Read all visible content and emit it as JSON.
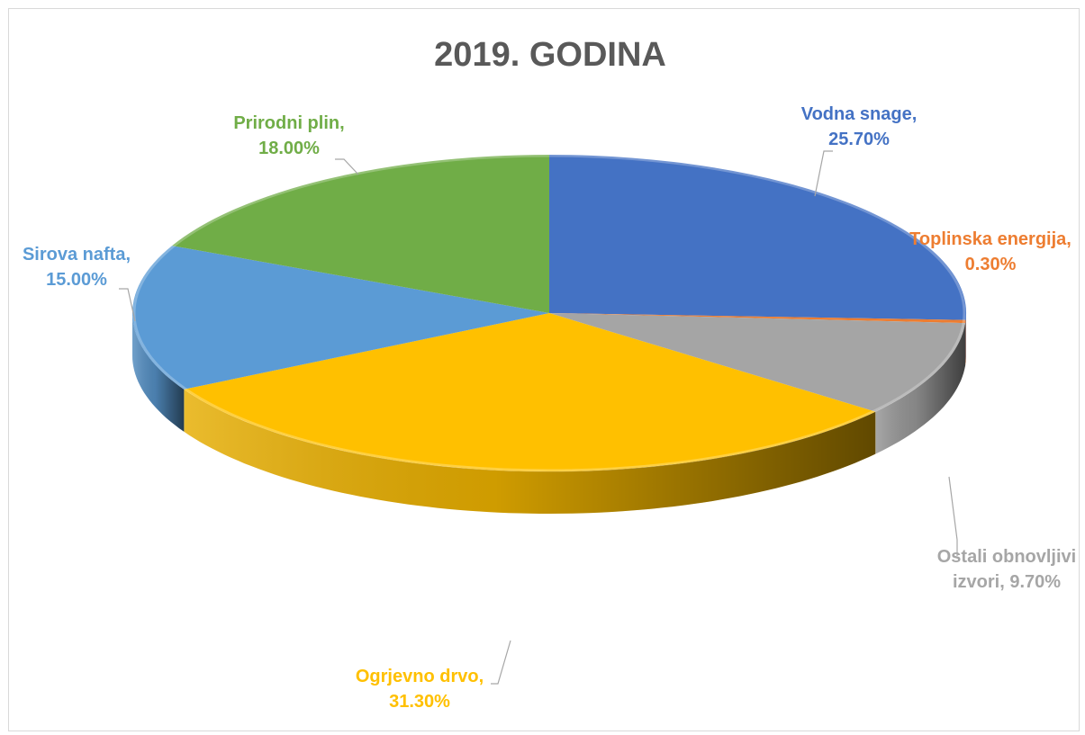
{
  "chart_data": {
    "type": "pie",
    "style": "3d-pie",
    "title": "2019. GODINA",
    "legend": "none",
    "slices": [
      {
        "name": "Vodna snage",
        "value": 25.7,
        "color": "#4472C4",
        "label_lines": [
          "Vodna snage,",
          "25.70%"
        ]
      },
      {
        "name": "Toplinska energija",
        "value": 0.3,
        "color": "#ED7D31",
        "label_lines": [
          "Toplinska energija,",
          "0.30%"
        ]
      },
      {
        "name": "Ostali obnovljivi izvori",
        "value": 9.7,
        "color": "#A5A5A5",
        "label_lines": [
          "Ostali obnovljivi",
          "izvori, 9.70%"
        ]
      },
      {
        "name": "Ogrjevno drvo",
        "value": 31.3,
        "color": "#FFC000",
        "label_lines": [
          "Ogrjevno drvo,",
          "31.30%"
        ]
      },
      {
        "name": "Sirova nafta",
        "value": 15.0,
        "color": "#5B9BD5",
        "label_lines": [
          "Sirova nafta,",
          "15.00%"
        ]
      },
      {
        "name": "Prirodni plin",
        "value": 18.0,
        "color": "#70AD47",
        "label_lines": [
          "Prirodni plin,",
          "18.00%"
        ]
      }
    ]
  }
}
